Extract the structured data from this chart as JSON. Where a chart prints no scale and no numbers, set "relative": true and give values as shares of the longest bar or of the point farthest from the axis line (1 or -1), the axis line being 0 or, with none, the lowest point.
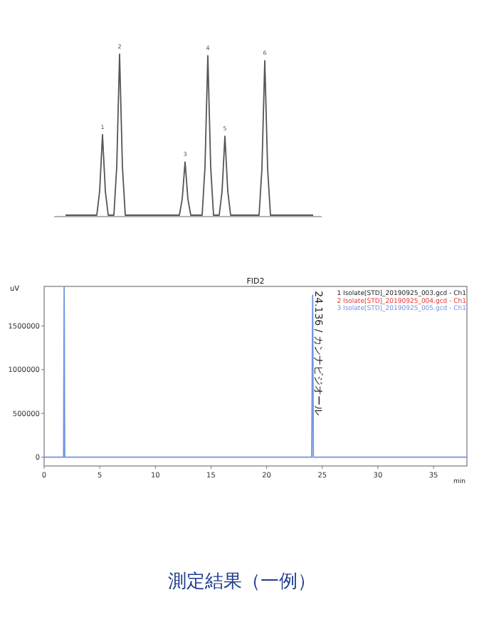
{
  "chart_data": [
    {
      "type": "line",
      "relative": true,
      "tick_labels": false,
      "categories": [
        null,
        null,
        null,
        null,
        null,
        null,
        null,
        null,
        null,
        null,
        null,
        null,
        null,
        null,
        null,
        null,
        null,
        null,
        null,
        null,
        null,
        null,
        null,
        null,
        null,
        null,
        null,
        null,
        null,
        null,
        null,
        null,
        null,
        null,
        null,
        null,
        null,
        null,
        null,
        null,
        null,
        null,
        null,
        null,
        null,
        null,
        null,
        null,
        null,
        null,
        null,
        null,
        null,
        null,
        null,
        null,
        null,
        null,
        null,
        null,
        null,
        null,
        null,
        null,
        null,
        null,
        null,
        null,
        null,
        null,
        null,
        null,
        null,
        null,
        null,
        null,
        null,
        null,
        null,
        null,
        null,
        null,
        null,
        null,
        null,
        null,
        null,
        null
      ],
      "series": [
        {
          "color": "#555555",
          "values": [
            0,
            0,
            0,
            0,
            0,
            0,
            0,
            0,
            0,
            0,
            0,
            0,
            0.15,
            0.5,
            0.15,
            0,
            0,
            0,
            0.3,
            1,
            0.3,
            0,
            0,
            0,
            0,
            0,
            0,
            0,
            0,
            0,
            0,
            0,
            0,
            0,
            0,
            0,
            0,
            0,
            0,
            0,
            0,
            0.1,
            0.33,
            0.1,
            0,
            0,
            0,
            0,
            0,
            0.3,
            0.99,
            0.3,
            0,
            0,
            0,
            0.15,
            0.49,
            0.15,
            0,
            0,
            0,
            0,
            0,
            0,
            0,
            0,
            0,
            0,
            0,
            0.29,
            0.96,
            0.29,
            0,
            0,
            0,
            0,
            0,
            0,
            0,
            0,
            0,
            0,
            0,
            0,
            0,
            0,
            0,
            0
          ]
        }
      ],
      "annotations": [
        "1",
        "2",
        "3",
        "4",
        "5",
        "6"
      ]
    },
    {
      "type": "line",
      "title": "FID2",
      "ylabel": "uV",
      "xlabel": "min",
      "legend": "top right",
      "xlim": [
        0,
        38
      ],
      "xticks": [
        0,
        5,
        10,
        15,
        20,
        25,
        30,
        35
      ],
      "ylim": [
        -100000,
        1950000
      ],
      "yticks": [
        0,
        500000,
        1000000,
        1500000
      ],
      "x": [
        0,
        1.7,
        1.75,
        1.8,
        1.85,
        1.9,
        2.0,
        23.9,
        24.05,
        24.136,
        24.2,
        24.3,
        25,
        38
      ],
      "series": [
        {
          "name": "1 Isolate[STD]_20190925_003.gcd - Ch1",
          "color": "#222222",
          "values": [
            null,
            null,
            null,
            null,
            null,
            null,
            null,
            null,
            null,
            null,
            null,
            null,
            null,
            null
          ]
        },
        {
          "name": "2 Isolate[STD]_20190925_004.gcd - Ch1",
          "color": "#ee3333",
          "values": [
            null,
            null,
            null,
            null,
            null,
            null,
            null,
            null,
            null,
            null,
            null,
            null,
            null,
            null
          ]
        },
        {
          "name": "3 Isolate[STD]_20190925_005.gcd - Ch1",
          "color": "#6f95e6",
          "values": [
            0,
            0,
            0,
            1950000,
            0,
            0,
            0,
            0,
            0,
            1850000,
            0,
            0,
            0,
            0
          ]
        }
      ],
      "annotations": [
        {
          "text": "24.136 / カンナビジオール",
          "x": 24.136,
          "y": 1850000
        },
        "測定結果（一例）"
      ]
    }
  ]
}
